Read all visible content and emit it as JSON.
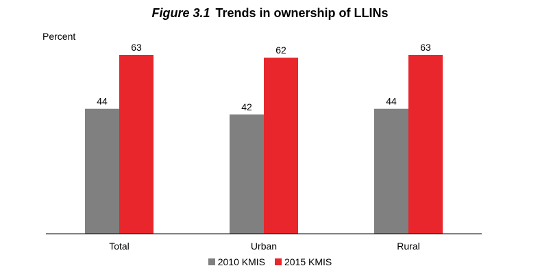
{
  "figure_label": "Figure 3.1",
  "figure_title": "Trends in ownership of LLINs",
  "chart_data": {
    "type": "bar",
    "title": "Figure 3.1 Trends in ownership of LLINs",
    "ylabel": "Percent",
    "xlabel": "",
    "categories": [
      "Total",
      "Urban",
      "Rural"
    ],
    "series": [
      {
        "name": "2010 KMIS",
        "color": "#808080",
        "values": [
          44,
          42,
          44
        ]
      },
      {
        "name": "2015 KMIS",
        "color": "#e8262b",
        "values": [
          63,
          62,
          63
        ]
      }
    ],
    "ylim": [
      0,
      75
    ],
    "grid": false,
    "legend_position": "bottom-center",
    "data_labels": true
  }
}
